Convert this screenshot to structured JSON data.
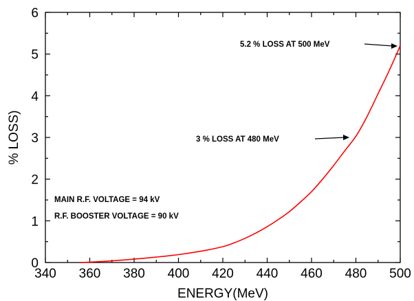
{
  "chart_data": {
    "type": "line",
    "title": "",
    "xlabel": "ENERGY(MeV)",
    "ylabel": "% LOSS)",
    "xlim": [
      340,
      500
    ],
    "ylim": [
      0,
      6
    ],
    "xticks": [
      340,
      360,
      380,
      400,
      420,
      440,
      460,
      480,
      500
    ],
    "yticks": [
      0,
      1,
      2,
      3,
      4,
      5,
      6
    ],
    "grid": false,
    "series": [
      {
        "color": "#ff0000",
        "x": [
          356,
          360,
          370,
          380,
          390,
          400,
          410,
          420,
          425,
          430,
          435,
          440,
          445,
          450,
          455,
          460,
          465,
          470,
          475,
          480,
          485,
          490,
          495,
          500
        ],
        "y": [
          0.0,
          0.01,
          0.04,
          0.08,
          0.13,
          0.19,
          0.27,
          0.38,
          0.47,
          0.58,
          0.71,
          0.86,
          1.03,
          1.22,
          1.45,
          1.7,
          2.0,
          2.33,
          2.68,
          3.03,
          3.5,
          4.05,
          4.6,
          5.2
        ]
      }
    ],
    "annotations": [
      {
        "id": "a500",
        "text": "5.2 % LOSS AT 500 MeV",
        "arrow_to": [
          500,
          5.2
        ]
      },
      {
        "id": "a480",
        "text": "3 % LOSS AT 480 MeV",
        "arrow_to": [
          480,
          3.0
        ]
      },
      {
        "id": "main_rf",
        "text": "MAIN R.F. VOLTAGE = 94 kV"
      },
      {
        "id": "booster_rf",
        "text": "R.F. BOOSTER VOLTAGE = 90 kV"
      }
    ]
  }
}
